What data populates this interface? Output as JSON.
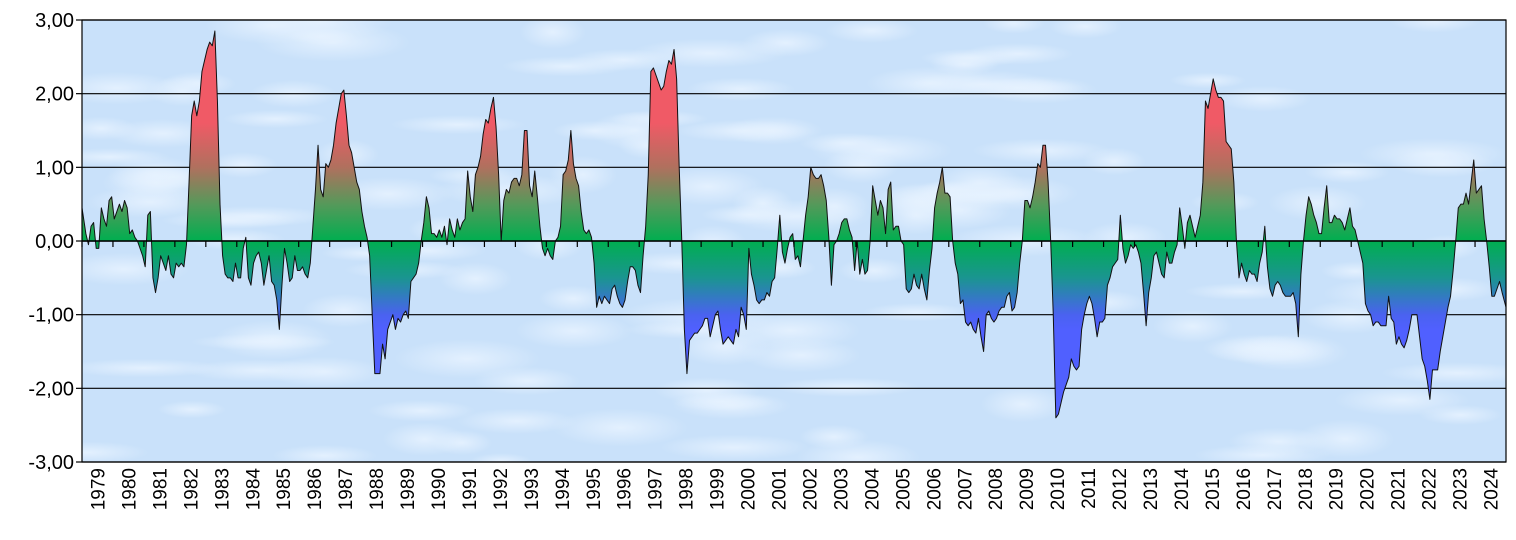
{
  "chart_data": {
    "type": "area",
    "title": "",
    "xlabel": "",
    "ylabel": "",
    "ylim": [
      -3,
      3
    ],
    "grid": true,
    "legend": "none",
    "y_ticks": [
      3,
      2,
      1,
      0,
      -1,
      -2,
      -3
    ],
    "y_tick_labels": [
      "3,00",
      "2,00",
      "1,00",
      "0,00",
      "-1,00",
      "-2,00",
      "-3,00"
    ],
    "x_tick_labels": [
      "1979",
      "1980",
      "1981",
      "1982",
      "1983",
      "1984",
      "1985",
      "1986",
      "1987",
      "1988",
      "1989",
      "1990",
      "1991",
      "1992",
      "1993",
      "1994",
      "1995",
      "1996",
      "1997",
      "1998",
      "1999",
      "2000",
      "2001",
      "2002",
      "2003",
      "2004",
      "2005",
      "2006",
      "2007",
      "2008",
      "2009",
      "2010",
      "2011",
      "2012",
      "2013",
      "2014",
      "2015",
      "2016",
      "2017",
      "2018",
      "2019",
      "2020",
      "2021",
      "2022",
      "2023",
      "2024"
    ],
    "sampling": "monthly",
    "colors": {
      "positive": "#f05a66",
      "neutral": "#00ae50",
      "negative": "#5060ff",
      "line": "#000000",
      "background": "#cfe5fb"
    },
    "values": {
      "1979": [
        0.45,
        0.1,
        -0.05,
        0.2,
        0.25,
        -0.1,
        -0.1,
        0.45,
        0.3,
        0.2,
        0.55,
        0.6
      ],
      "1980": [
        0.3,
        0.4,
        0.5,
        0.4,
        0.55,
        0.45,
        0.1,
        0.15,
        0.05,
        0,
        -0.1,
        -0.2
      ],
      "1981": [
        -0.35,
        0.35,
        0.4,
        -0.5,
        -0.7,
        -0.5,
        -0.2,
        -0.3,
        -0.4,
        -0.2,
        -0.45,
        -0.5
      ],
      "1982": [
        -0.3,
        -0.35,
        -0.3,
        -0.35,
        -0.05,
        0.8,
        1.7,
        1.9,
        1.7,
        1.9,
        2.3,
        2.45
      ],
      "1983": [
        2.6,
        2.7,
        2.65,
        2.85,
        1.9,
        0.5,
        -0.2,
        -0.45,
        -0.5,
        -0.5,
        -0.55,
        -0.3
      ],
      "1984": [
        -0.5,
        -0.5,
        -0.1,
        0.05,
        -0.5,
        -0.6,
        -0.3,
        -0.2,
        -0.15,
        -0.3,
        -0.6,
        -0.4
      ],
      "1985": [
        -0.2,
        -0.55,
        -0.6,
        -0.8,
        -1.2,
        -0.6,
        -0.1,
        -0.3,
        -0.55,
        -0.5,
        -0.2,
        -0.4
      ],
      "1986": [
        -0.4,
        -0.35,
        -0.45,
        -0.5,
        -0.3,
        0.2,
        0.7,
        1.3,
        0.7,
        0.6,
        1.05,
        1.0
      ],
      "1987": [
        1.1,
        1.3,
        1.6,
        1.8,
        2.0,
        2.05,
        1.7,
        1.3,
        1.2,
        1.0,
        0.8,
        0.7
      ],
      "1988": [
        0.4,
        0.2,
        0.05,
        -0.2,
        -1.0,
        -1.8,
        -1.8,
        -1.8,
        -1.4,
        -1.6,
        -1.2,
        -1.1
      ],
      "1989": [
        -1.0,
        -1.2,
        -1.05,
        -1.1,
        -1.0,
        -0.95,
        -1.05,
        -0.55,
        -0.5,
        -0.45,
        -0.3,
        0.0
      ],
      "1990": [
        0.25,
        0.6,
        0.45,
        0.1,
        0.1,
        0.05,
        0.15,
        0.05,
        0.2,
        -0.05,
        0.3,
        0.15
      ],
      "1991": [
        0.05,
        0.3,
        0.15,
        0.25,
        0.3,
        0.95,
        0.6,
        0.4,
        0.9,
        1.0,
        1.15,
        1.45
      ],
      "1992": [
        1.65,
        1.6,
        1.8,
        1.95,
        1.55,
        0.9,
        0.0,
        0.55,
        0.7,
        0.65,
        0.8,
        0.85
      ],
      "1993": [
        0.85,
        0.75,
        0.9,
        1.5,
        1.5,
        0.75,
        0.6,
        0.95,
        0.6,
        0.2,
        -0.1,
        -0.2
      ],
      "1994": [
        -0.1,
        -0.2,
        -0.25,
        0.0,
        0.05,
        0.2,
        0.9,
        0.95,
        1.1,
        1.5,
        1.05,
        0.85
      ],
      "1995": [
        0.75,
        0.4,
        0.15,
        0.1,
        0.15,
        0.05,
        -0.3,
        -0.9,
        -0.75,
        -0.85,
        -0.75,
        -0.8
      ],
      "1996": [
        -0.85,
        -0.65,
        -0.6,
        -0.75,
        -0.85,
        -0.9,
        -0.8,
        -0.55,
        -0.35,
        -0.35,
        -0.4,
        -0.6
      ],
      "1997": [
        -0.7,
        -0.2,
        0.2,
        0.9,
        2.3,
        2.35,
        2.25,
        2.15,
        2.05,
        2.1,
        2.3,
        2.45
      ],
      "1998": [
        2.4,
        2.6,
        2.2,
        1.0,
        0.0,
        -1.2,
        -1.8,
        -1.35,
        -1.3,
        -1.25,
        -1.25,
        -1.2
      ],
      "1999": [
        -1.15,
        -1.05,
        -1.05,
        -1.3,
        -1.15,
        -1.0,
        -0.95,
        -1.2,
        -1.4,
        -1.35,
        -1.3,
        -1.35
      ],
      "2000": [
        -1.4,
        -1.2,
        -1.3,
        -0.9,
        -1.0,
        -1.2,
        -0.1,
        -0.45,
        -0.6,
        -0.8,
        -0.85,
        -0.8
      ],
      "2001": [
        -0.8,
        -0.7,
        -0.75,
        -0.55,
        -0.5,
        -0.1,
        0.35,
        -0.15,
        -0.3,
        -0.1,
        0.05,
        0.1
      ],
      "2002": [
        -0.25,
        -0.2,
        -0.35,
        0.0,
        0.35,
        0.6,
        1.0,
        0.9,
        0.85,
        0.85,
        0.9,
        0.75
      ],
      "2003": [
        0.55,
        0.05,
        -0.6,
        -0.05,
        0.0,
        0.1,
        0.25,
        0.3,
        0.3,
        0.15,
        0.05,
        -0.4
      ],
      "2004": [
        0.0,
        -0.45,
        -0.25,
        -0.45,
        -0.4,
        0.0,
        0.75,
        0.55,
        0.35,
        0.55,
        0.45,
        0.1
      ],
      "2005": [
        0.7,
        0.8,
        0.15,
        0.2,
        0.2,
        0.0,
        -0.05,
        -0.65,
        -0.7,
        -0.65,
        -0.45,
        -0.6
      ],
      "2006": [
        -0.65,
        -0.45,
        -0.65,
        -0.8,
        -0.4,
        -0.1,
        0.45,
        0.65,
        0.8,
        1.0,
        0.65,
        0.65
      ],
      "2007": [
        0.6,
        0.0,
        -0.3,
        -0.45,
        -0.85,
        -0.8,
        -1.1,
        -1.15,
        -1.1,
        -1.2,
        -1.25,
        -1.05
      ],
      "2008": [
        -1.3,
        -1.5,
        -1.0,
        -0.95,
        -1.05,
        -1.1,
        -1.05,
        -0.95,
        -0.9,
        -0.9,
        -0.75,
        -0.7
      ],
      "2009": [
        -0.95,
        -0.9,
        -0.7,
        -0.3,
        0.0,
        0.55,
        0.55,
        0.45,
        0.6,
        0.8,
        1.05,
        1.0
      ],
      "2010": [
        1.3,
        1.3,
        0.8,
        0.0,
        -1.0,
        -2.4,
        -2.35,
        -2.2,
        -2.05,
        -1.95,
        -1.85,
        -1.6
      ],
      "2011": [
        -1.7,
        -1.75,
        -1.7,
        -1.2,
        -1.0,
        -0.85,
        -0.75,
        -0.85,
        -1.05,
        -1.3,
        -1.1,
        -1.1
      ],
      "2012": [
        -1.05,
        -0.6,
        -0.5,
        -0.35,
        -0.3,
        -0.25,
        0.35,
        -0.1,
        -0.3,
        -0.2,
        -0.05,
        -0.1
      ],
      "2013": [
        -0.05,
        -0.15,
        -0.3,
        -0.7,
        -1.15,
        -0.7,
        -0.5,
        -0.2,
        -0.15,
        -0.3,
        -0.45,
        -0.5
      ],
      "2014": [
        -0.15,
        -0.3,
        -0.3,
        -0.15,
        -0.05,
        0.45,
        0.2,
        -0.1,
        0.25,
        0.35,
        0.2,
        0.05
      ],
      "2015": [
        0.2,
        0.35,
        0.8,
        1.9,
        1.8,
        2.0,
        2.2,
        2.05,
        1.95,
        1.95,
        1.9,
        1.35
      ],
      "2016": [
        1.3,
        1.25,
        0.8,
        0.0,
        -0.5,
        -0.3,
        -0.45,
        -0.55,
        -0.4,
        -0.45,
        -0.45,
        -0.55
      ],
      "2017": [
        -0.3,
        -0.15,
        0.2,
        -0.35,
        -0.65,
        -0.75,
        -0.6,
        -0.55,
        -0.6,
        -0.7,
        -0.75,
        -0.75
      ],
      "2018": [
        -0.75,
        -0.7,
        -0.85,
        -1.3,
        -0.45,
        0.0,
        0.35,
        0.6,
        0.5,
        0.35,
        0.25,
        0.1
      ],
      "2019": [
        0.1,
        0.45,
        0.75,
        0.25,
        0.25,
        0.35,
        0.3,
        0.3,
        0.25,
        0.15,
        0.3,
        0.45
      ],
      "2020": [
        0.2,
        0.15,
        0.0,
        -0.15,
        -0.3,
        -0.85,
        -0.95,
        -1.0,
        -1.15,
        -1.1,
        -1.1,
        -1.15
      ],
      "2021": [
        -1.15,
        -1.15,
        -0.75,
        -1.05,
        -1.1,
        -1.4,
        -1.3,
        -1.4,
        -1.45,
        -1.35,
        -1.2,
        -1.0
      ],
      "2022": [
        -1.0,
        -1.0,
        -1.3,
        -1.6,
        -1.7,
        -1.9,
        -2.15,
        -1.75,
        -1.75,
        -1.75,
        -1.5,
        -1.3
      ],
      "2023": [
        -1.1,
        -0.9,
        -0.75,
        -0.4,
        0.0,
        0.45,
        0.5,
        0.5,
        0.65,
        0.5,
        0.8,
        1.1
      ],
      "2024": [
        0.65,
        0.7,
        0.75,
        0.3,
        0.0,
        -0.35,
        -0.75,
        -0.75,
        -0.65,
        -0.55,
        -0.7,
        -0.9
      ]
    }
  }
}
